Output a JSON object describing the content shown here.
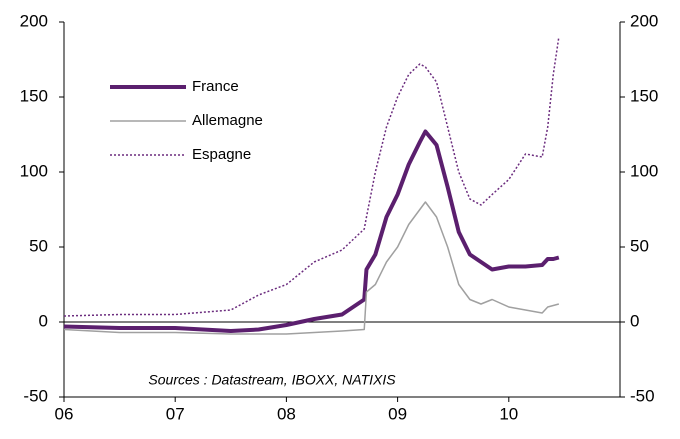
{
  "chart_data": {
    "type": "line",
    "annotation": "Sources : Datastream, IBOXX, NATIXIS",
    "x": [
      6,
      6.5,
      7,
      7.5,
      7.75,
      8,
      8.25,
      8.5,
      8.7,
      8.72,
      8.8,
      8.9,
      9,
      9.1,
      9.2,
      9.25,
      9.35,
      9.45,
      9.55,
      9.65,
      9.75,
      9.85,
      10,
      10.15,
      10.3,
      10.35,
      10.4,
      10.45
    ],
    "series": [
      {
        "name": "France",
        "color": "#5b1f6e",
        "values": [
          -3,
          -4,
          -4,
          -6,
          -5,
          -2,
          2,
          5,
          15,
          35,
          45,
          70,
          85,
          105,
          120,
          127,
          118,
          90,
          60,
          45,
          40,
          35,
          37,
          37,
          38,
          42,
          42,
          43
        ]
      },
      {
        "name": "Allemagne",
        "color": "#a0a0a0",
        "values": [
          -5,
          -7,
          -7,
          -8,
          -8,
          -8,
          -7,
          -6,
          -5,
          20,
          25,
          40,
          50,
          65,
          75,
          80,
          70,
          50,
          25,
          15,
          12,
          15,
          10,
          8,
          6,
          10,
          11,
          12
        ]
      },
      {
        "name": "Espagne",
        "color": "#6b2c7e",
        "dashed": true,
        "values": [
          4,
          5,
          5,
          8,
          18,
          25,
          40,
          48,
          62,
          70,
          100,
          130,
          150,
          165,
          172,
          170,
          160,
          130,
          100,
          82,
          78,
          85,
          95,
          112,
          110,
          130,
          165,
          190
        ],
        "axis": "y2"
      }
    ],
    "xlim": [
      6,
      11
    ],
    "xticks": [
      {
        "value": 6,
        "label": "06"
      },
      {
        "value": 7,
        "label": "07"
      },
      {
        "value": 8,
        "label": "08"
      },
      {
        "value": 9,
        "label": "09"
      },
      {
        "value": 10,
        "label": "10"
      }
    ],
    "ylim": [
      -50,
      200
    ],
    "yticks": [
      -50,
      0,
      50,
      100,
      150,
      200
    ],
    "y2lim": [
      -50,
      200
    ],
    "y2ticks": [
      -50,
      0,
      50,
      100,
      150,
      200
    ],
    "legend": "upper left"
  }
}
